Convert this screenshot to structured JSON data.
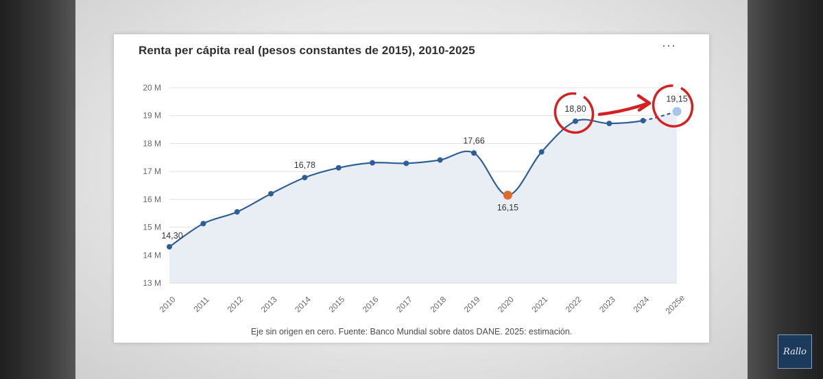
{
  "chart_data": {
    "type": "line",
    "title": "Renta per cápita real (pesos constantes de 2015), 2010-2025",
    "footnote": "Eje sin origen en cero. Fuente: Banco Mundial sobre datos DANE. 2025: estimación.",
    "x": [
      "2010",
      "2011",
      "2012",
      "2013",
      "2014",
      "2015",
      "2016",
      "2017",
      "2018",
      "2019",
      "2020",
      "2021",
      "2022",
      "2023",
      "2024",
      "2025e"
    ],
    "series": [
      {
        "values": [
          14.3,
          15.13,
          15.55,
          16.2,
          16.78,
          17.13,
          17.31,
          17.29,
          17.41,
          17.66,
          16.15,
          17.7,
          18.8,
          18.72,
          18.82,
          19.15
        ]
      }
    ],
    "y_ticks": [
      "13 M",
      "14 M",
      "15 M",
      "16 M",
      "17 M",
      "18 M",
      "19 M",
      "20 M"
    ],
    "ylim": [
      13,
      20
    ],
    "grid": true,
    "data_labels": [
      {
        "index": 0,
        "text": "14,30"
      },
      {
        "index": 4,
        "text": "16,78"
      },
      {
        "index": 9,
        "text": "17,66"
      },
      {
        "index": 10,
        "text": "16,15"
      },
      {
        "index": 12,
        "text": "18,80"
      },
      {
        "index": 15,
        "text": "19,15"
      }
    ],
    "highlight_point": 10,
    "estimate_point": 15,
    "colors": {
      "line": "#2d5f96",
      "area": "#e9eef5",
      "highlight": "#e06a2c",
      "estimate": "#a8c4ea",
      "annotation": "#d42020"
    }
  },
  "ui": {
    "menu_icon": "more-horizontal-icon",
    "menu_label": "···",
    "logo_text": "Rallo"
  }
}
